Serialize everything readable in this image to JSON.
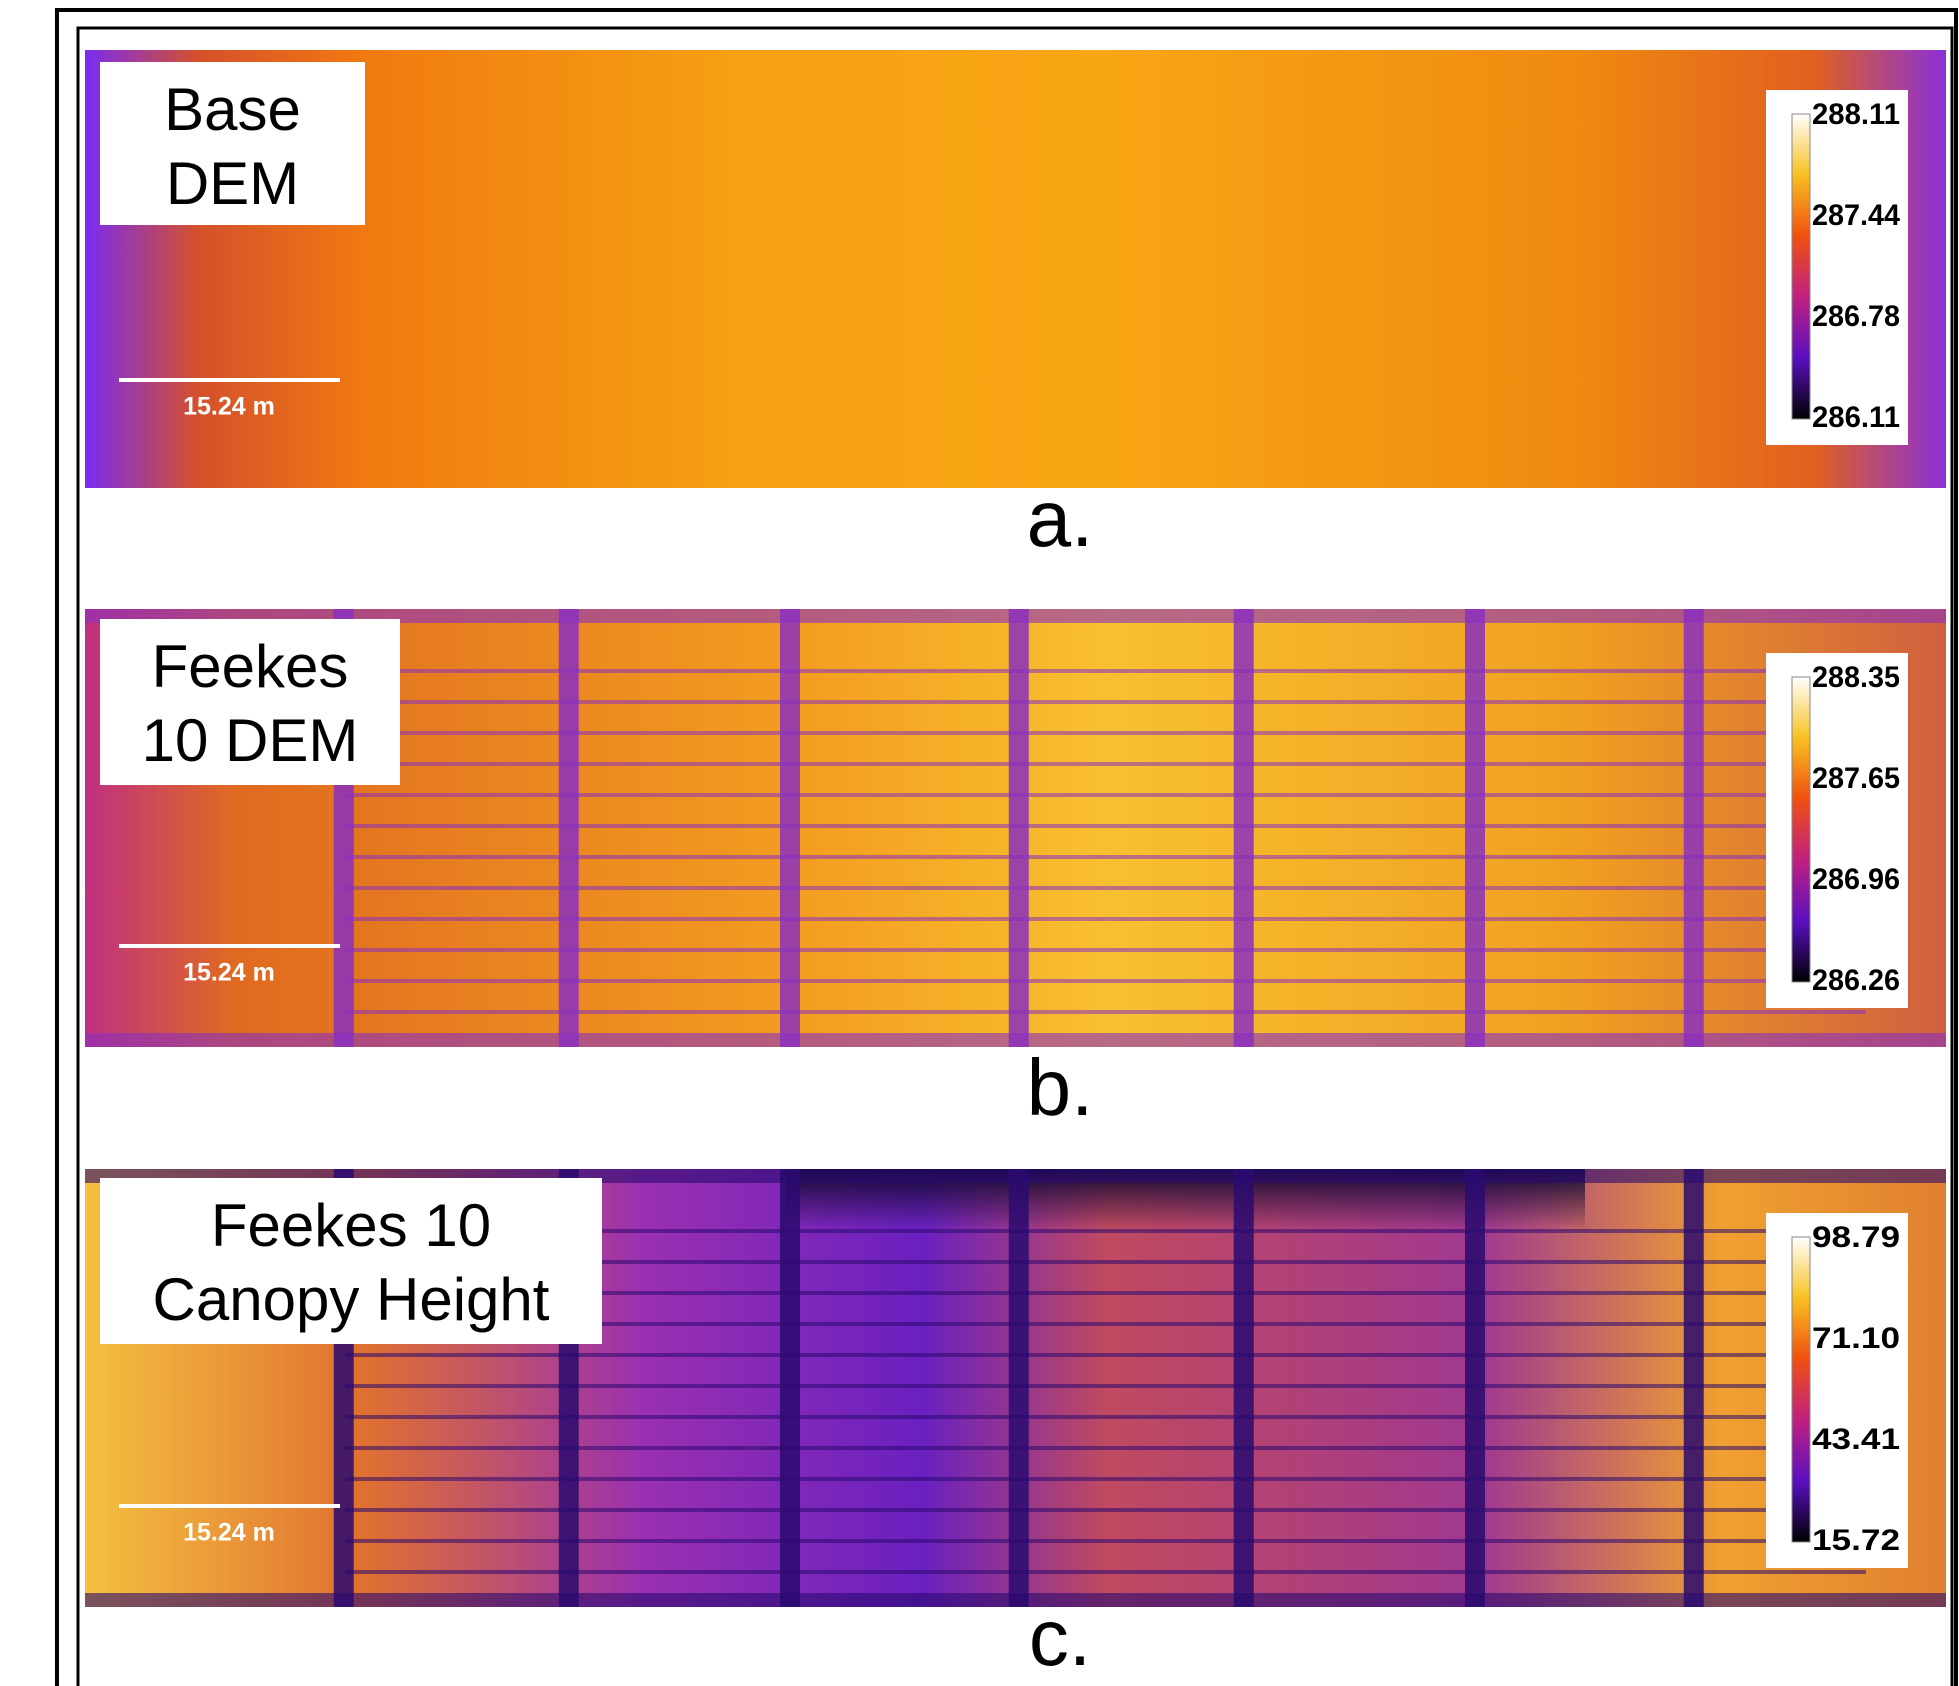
{
  "panels": [
    {
      "label_lines": [
        "Base",
        "DEM"
      ],
      "caption": "a.",
      "scale_label": "15.24 m",
      "colorbar_ticks": [
        "288.11",
        "287.44",
        "286.78",
        "286.11"
      ]
    },
    {
      "label_lines": [
        "Feekes",
        "10 DEM"
      ],
      "caption": "b.",
      "scale_label": "15.24 m",
      "colorbar_ticks": [
        "288.35",
        "287.65",
        "286.96",
        "286.26"
      ]
    },
    {
      "label_lines": [
        "Feekes 10",
        "Canopy Height"
      ],
      "caption": "c.",
      "scale_label": "15.24 m",
      "colorbar_ticks": [
        "98.79",
        "71.10",
        "43.41",
        "15.72"
      ]
    }
  ]
}
